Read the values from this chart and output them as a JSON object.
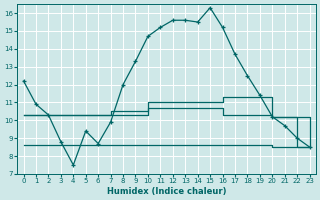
{
  "xlabel": "Humidex (Indice chaleur)",
  "background_color": "#cfe8e8",
  "grid_color": "#ffffff",
  "line_color": "#006666",
  "xlim": [
    -0.5,
    23.5
  ],
  "ylim": [
    7,
    16.5
  ],
  "yticks": [
    7,
    8,
    9,
    10,
    11,
    12,
    13,
    14,
    15,
    16
  ],
  "xticks": [
    0,
    1,
    2,
    3,
    4,
    5,
    6,
    7,
    8,
    9,
    10,
    11,
    12,
    13,
    14,
    15,
    16,
    17,
    18,
    19,
    20,
    21,
    22,
    23
  ],
  "main_x": [
    0,
    1,
    2,
    3,
    4,
    5,
    6,
    7,
    8,
    9,
    10,
    11,
    12,
    13,
    14,
    15,
    16,
    17,
    18,
    19,
    20,
    21,
    22,
    23
  ],
  "main_y": [
    12.2,
    10.9,
    10.3,
    8.8,
    7.5,
    9.4,
    8.7,
    9.9,
    12.0,
    13.3,
    14.7,
    15.2,
    15.6,
    15.6,
    15.5,
    16.3,
    15.2,
    13.7,
    12.5,
    11.4,
    10.2,
    9.7,
    9.0,
    8.5
  ],
  "avg_max_x": [
    0,
    2,
    7,
    10,
    12,
    16,
    19,
    20,
    22,
    23
  ],
  "avg_max_y": [
    10.3,
    10.3,
    10.5,
    11.0,
    11.0,
    11.3,
    11.3,
    10.2,
    10.2,
    8.5
  ],
  "avg_x": [
    0,
    2,
    7,
    10,
    12,
    16,
    20,
    22,
    23
  ],
  "avg_y": [
    10.3,
    10.3,
    10.3,
    10.7,
    10.7,
    10.3,
    10.2,
    8.5,
    8.5
  ],
  "avg_min_x": [
    0,
    2,
    5,
    7,
    10,
    12,
    16,
    20,
    22,
    23
  ],
  "avg_min_y": [
    8.6,
    8.6,
    8.6,
    8.6,
    8.6,
    8.6,
    8.6,
    8.5,
    8.5,
    8.5
  ]
}
